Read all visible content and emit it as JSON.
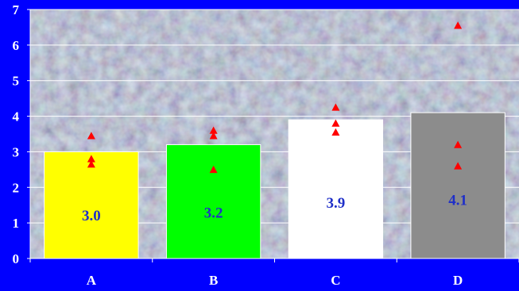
{
  "chart_data": {
    "type": "bar",
    "title": "",
    "xlabel": "",
    "ylabel": "",
    "ylim": [
      0,
      7
    ],
    "yticks": [
      0,
      1,
      2,
      3,
      4,
      5,
      6,
      7
    ],
    "grid": true,
    "legend": "none",
    "categories": [
      "A",
      "B",
      "C",
      "D"
    ],
    "series": [
      {
        "type": "bar",
        "values": [
          3.0,
          3.2,
          3.9,
          4.1
        ],
        "labels": [
          "3.0",
          "3.2",
          "3.9",
          "4.1"
        ],
        "colors": [
          "#ffff00",
          "#00ff00",
          "#ffffff",
          "#8c8c8c"
        ]
      },
      {
        "type": "scatter",
        "marker": "triangle",
        "color": "#ff0000",
        "points": [
          {
            "category": "A",
            "values": [
              3.45,
              2.8,
              2.65
            ]
          },
          {
            "category": "B",
            "values": [
              3.6,
              3.45,
              2.5
            ]
          },
          {
            "category": "C",
            "values": [
              4.25,
              3.8,
              3.55
            ]
          },
          {
            "category": "D",
            "values": [
              6.55,
              3.2,
              2.6
            ]
          }
        ]
      }
    ],
    "colors": {
      "background": "#0000ff",
      "axis_text": "#ffffff",
      "label_text": "#1f2fc8"
    }
  }
}
